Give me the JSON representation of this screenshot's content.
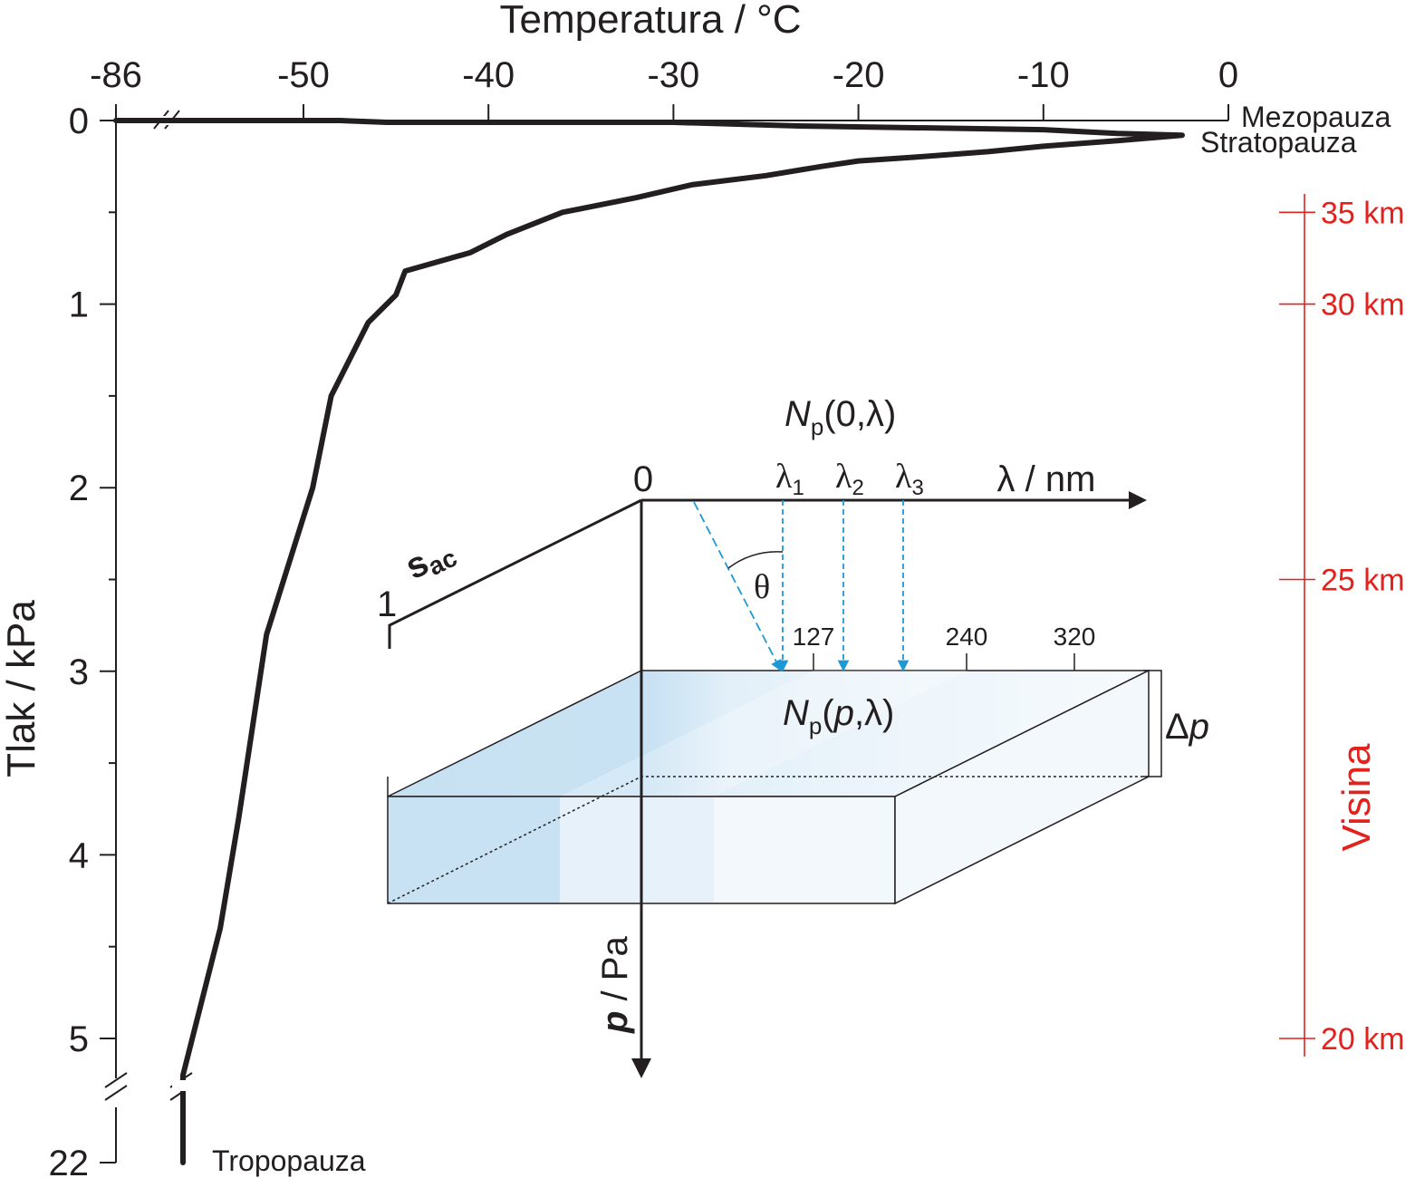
{
  "chart_data": {
    "type": "line",
    "title": "",
    "x_axis": {
      "label": "Temperatura / °C",
      "position": "top",
      "ticks": [
        "-86",
        "-50",
        "-40",
        "-30",
        "-20",
        "-10",
        "0"
      ],
      "tick_values": [
        -86,
        -50,
        -40,
        -30,
        -20,
        -10,
        0
      ],
      "axis_break_after": -86
    },
    "y_axis": {
      "label": "Tlak / kPa",
      "inverted": true,
      "ticks": [
        "0",
        "1",
        "2",
        "3",
        "4",
        "5",
        "22"
      ],
      "tick_values": [
        0,
        1,
        2,
        3,
        4,
        5,
        22
      ],
      "minor_tick_values": [
        0.5,
        1.5,
        2.5,
        3.5,
        4.5
      ],
      "axis_break_between": [
        5,
        22
      ]
    },
    "right_axis": {
      "label": "Visina",
      "color": "#e3211d",
      "ticks": [
        {
          "label": "35 km",
          "pressure": 0.5
        },
        {
          "label": "30 km",
          "pressure": 1.0
        },
        {
          "label": "25 km",
          "pressure": 2.5
        },
        {
          "label": "20 km",
          "pressure": 5.0
        }
      ]
    },
    "series": [
      {
        "color": "#231f20",
        "points": [
          [
            -86,
            0.0
          ],
          [
            -50,
            0.0
          ],
          [
            -48,
            0.0
          ],
          [
            -45.5,
            0.01
          ],
          [
            -30,
            0.01
          ],
          [
            -23,
            0.03
          ],
          [
            -10,
            0.05
          ],
          [
            -6,
            0.07
          ],
          [
            -2.5,
            0.08
          ],
          [
            -6,
            0.11
          ],
          [
            -10,
            0.14
          ],
          [
            -13,
            0.17
          ],
          [
            -17,
            0.2
          ],
          [
            -20,
            0.22
          ],
          [
            -22,
            0.25
          ],
          [
            -25,
            0.3
          ],
          [
            -29,
            0.35
          ],
          [
            -32,
            0.42
          ],
          [
            -36,
            0.5
          ],
          [
            -39,
            0.62
          ],
          [
            -41,
            0.72
          ],
          [
            -44.5,
            0.82
          ],
          [
            -45,
            0.95
          ],
          [
            -46.5,
            1.1
          ],
          [
            -48.5,
            1.5
          ],
          [
            -49.5,
            2.0
          ],
          [
            -52,
            2.8
          ],
          [
            -53.5,
            3.8
          ],
          [
            -54.5,
            4.4
          ],
          [
            -55.5,
            5.2
          ],
          [
            -55.5,
            22
          ]
        ]
      }
    ],
    "annotations": {
      "mesopause": "Mezopauza",
      "stratopause": "Stratopauza",
      "tropopause": "Tropopauza"
    }
  },
  "inset": {
    "sac_label": "s",
    "sac_sub": "ac",
    "sac_one": "1",
    "origin": "0",
    "wavelength_axis": "λ / nm",
    "lambda_labels": [
      {
        "l": "λ",
        "s": "1"
      },
      {
        "l": "λ",
        "s": "2"
      },
      {
        "l": "λ",
        "s": "3"
      }
    ],
    "np0_N": "N",
    "np0_sub": "p",
    "np0_args": "(0,λ)",
    "theta": "θ",
    "scale_ticks": [
      "127",
      "240",
      "320"
    ],
    "npp_N": "N",
    "npp_sub": "p",
    "npp_open": "(",
    "npp_p": "p",
    "npp_close": ",λ)",
    "delta_p": "Δ",
    "delta_p_var": "p",
    "p_axis_var": "p",
    "p_axis_unit": " / Pa"
  }
}
